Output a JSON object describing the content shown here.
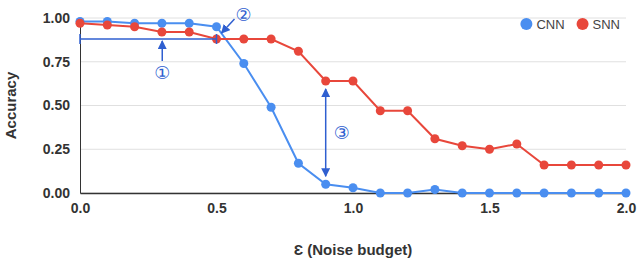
{
  "chart_data": {
    "type": "line",
    "x_label": "Ɛ (Noise budget)",
    "y_label": "Accuracy",
    "x": [
      0.0,
      0.1,
      0.2,
      0.3,
      0.4,
      0.5,
      0.6,
      0.7,
      0.8,
      0.9,
      1.0,
      1.1,
      1.2,
      1.3,
      1.4,
      1.5,
      1.6,
      1.7,
      1.8,
      1.9,
      2.0
    ],
    "series": [
      {
        "name": "CNN",
        "color": "#4a8ef0",
        "marker": "circle",
        "values": [
          0.98,
          0.98,
          0.97,
          0.97,
          0.97,
          0.95,
          0.74,
          0.49,
          0.17,
          0.05,
          0.03,
          0.0,
          0.0,
          0.02,
          0.0,
          0.0,
          0.0,
          0.0,
          0.0,
          0.0,
          0.0
        ]
      },
      {
        "name": "SNN",
        "color": "#e8473b",
        "marker": "circle",
        "values": [
          0.97,
          0.96,
          0.95,
          0.92,
          0.92,
          0.88,
          0.88,
          0.88,
          0.81,
          0.64,
          0.64,
          0.47,
          0.47,
          0.31,
          0.27,
          0.25,
          0.28,
          0.16,
          0.16,
          0.16,
          0.16
        ]
      }
    ],
    "xlim": [
      0.0,
      2.0
    ],
    "xticks": [
      {
        "value": 0,
        "label": "0.0"
      },
      {
        "value": 0.5,
        "label": "0.5"
      },
      {
        "value": 1,
        "label": "1.0"
      },
      {
        "value": 1.5,
        "label": "1.5"
      },
      {
        "value": 2,
        "label": "2.0"
      }
    ],
    "ylim": [
      0.0,
      1.0
    ],
    "yticks": [
      {
        "value": 0,
        "label": "0.00"
      },
      {
        "value": 0.25,
        "label": "0.25"
      },
      {
        "value": 0.5,
        "label": "0.50"
      },
      {
        "value": 0.75,
        "label": "0.75"
      },
      {
        "value": 1,
        "label": "1.00"
      }
    ],
    "grid": true,
    "legend": "top-right",
    "annotations": [
      {
        "text": "①",
        "x": [
          0.0,
          0.5
        ]
      },
      {
        "text": "②",
        "x": 0.5
      },
      {
        "text": "③",
        "x": 0.9
      }
    ]
  }
}
